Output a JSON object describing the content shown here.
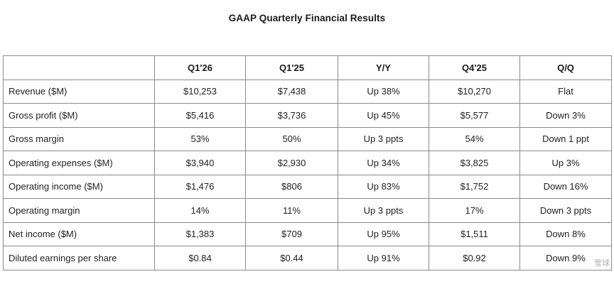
{
  "title": "GAAP Quarterly Financial Results",
  "table": {
    "headers": [
      "",
      "Q1'26",
      "Q1'25",
      "Y/Y",
      "Q4'25",
      "Q/Q"
    ],
    "rows": [
      [
        "Revenue ($M)",
        "$10,253",
        "$7,438",
        "Up 38%",
        "$10,270",
        "Flat"
      ],
      [
        "Gross profit ($M)",
        "$5,416",
        "$3,736",
        "Up 45%",
        "$5,577",
        "Down 3%"
      ],
      [
        "Gross margin",
        "53%",
        "50%",
        "Up 3 ppts",
        "54%",
        "Down 1 ppt"
      ],
      [
        "Operating expenses ($M)",
        "$3,940",
        "$2,930",
        "Up 34%",
        "$3,825",
        "Up 3%"
      ],
      [
        "Operating income ($M)",
        "$1,476",
        "$806",
        "Up 83%",
        "$1,752",
        "Down 16%"
      ],
      [
        "Operating margin",
        "14%",
        "11%",
        "Up 3 ppts",
        "17%",
        "Down 3 ppts"
      ],
      [
        "Net income ($M)",
        "$1,383",
        "$709",
        "Up 95%",
        "$1,511",
        "Down 8%"
      ],
      [
        "Diluted earnings per share",
        "$0.84",
        "$0.44",
        "Up 91%",
        "$0.92",
        "Down 9%"
      ]
    ]
  },
  "watermark": "雪球"
}
